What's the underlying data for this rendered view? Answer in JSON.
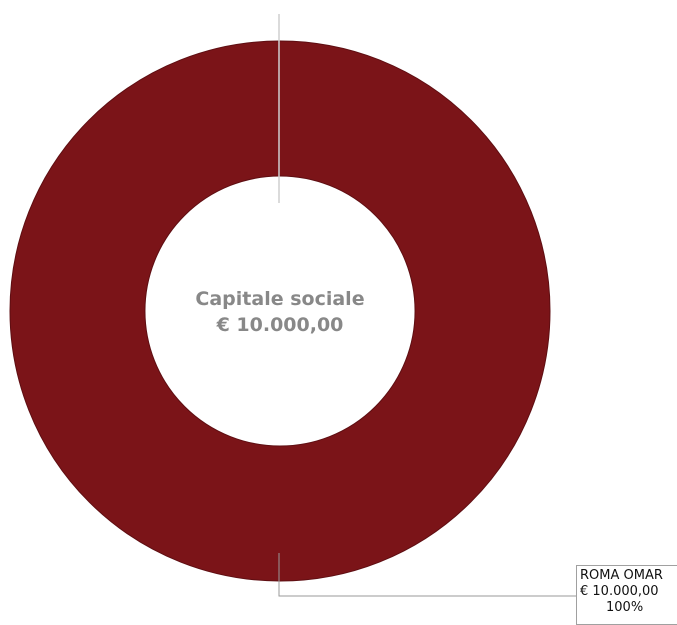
{
  "chart_data": {
    "type": "pie",
    "donut": true,
    "center_label": [
      "Capitale sociale",
      "€ 10.000,00"
    ],
    "slices": [
      {
        "label": "ROMA OMAR",
        "value_text": "€ 10.000,00",
        "value": 10000,
        "percent_text": "100%",
        "percent": 100
      }
    ],
    "colors": [
      "#7b1418"
    ],
    "legend": "none"
  }
}
